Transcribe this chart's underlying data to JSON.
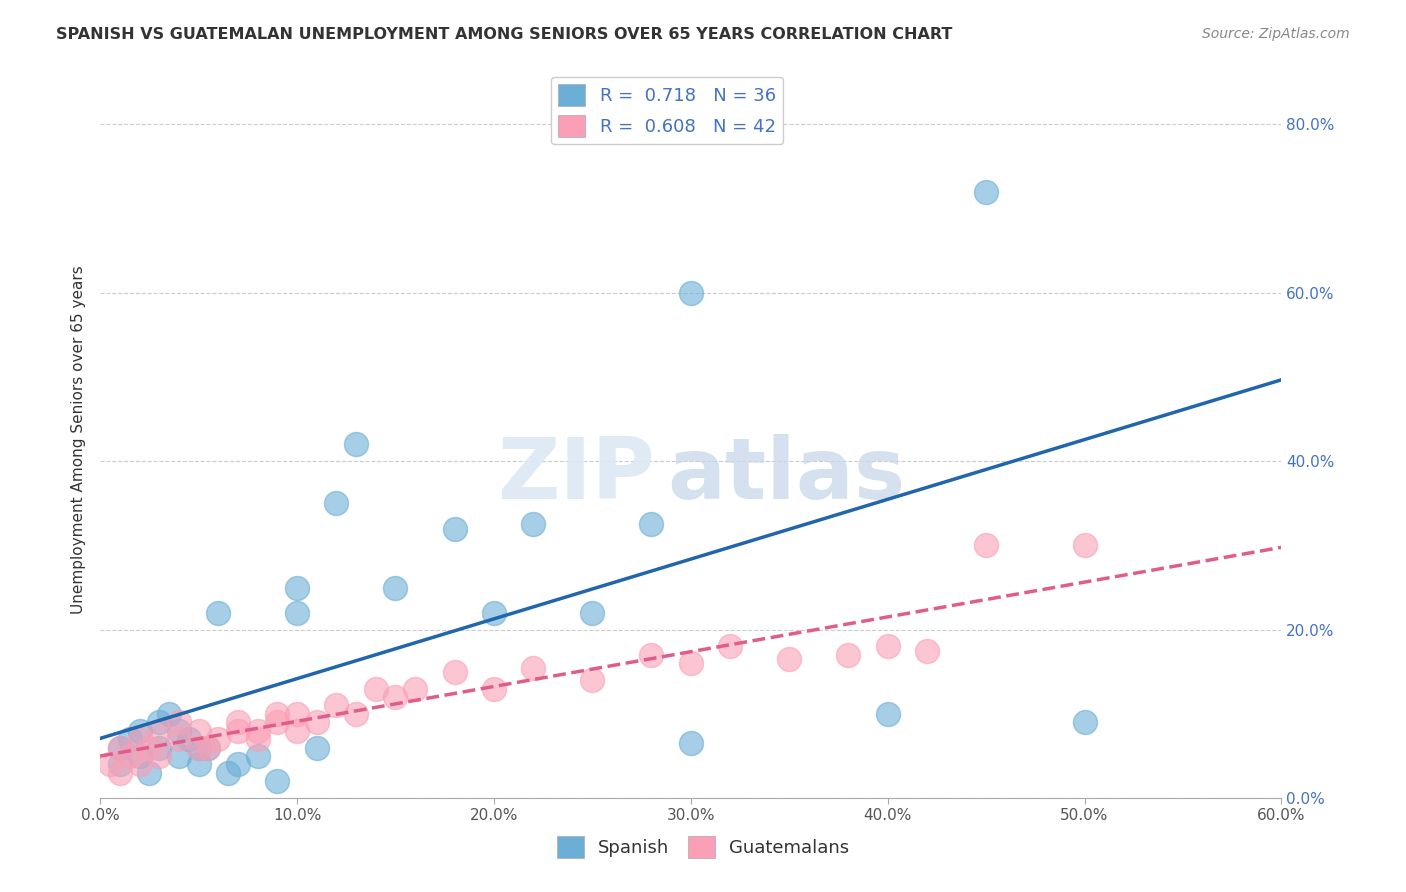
{
  "title": "SPANISH VS GUATEMALAN UNEMPLOYMENT AMONG SENIORS OVER 65 YEARS CORRELATION CHART",
  "source": "Source: ZipAtlas.com",
  "ylabel": "Unemployment Among Seniors over 65 years",
  "xlim": [
    0.0,
    0.6
  ],
  "ylim": [
    0.0,
    0.85
  ],
  "xticks": [
    0.0,
    0.1,
    0.2,
    0.3,
    0.4,
    0.5,
    0.6
  ],
  "yticks_right": [
    0.0,
    0.2,
    0.4,
    0.6,
    0.8
  ],
  "spanish_color": "#6baed6",
  "guatemalan_color": "#fa9fb5",
  "spanish_line_color": "#2166ac",
  "guatemalan_line_color": "#e05c8a",
  "spanish_R": 0.718,
  "spanish_N": 36,
  "guatemalan_R": 0.608,
  "guatemalan_N": 42,
  "watermark": "ZIPatlas",
  "spanish_points_x": [
    0.01,
    0.01,
    0.015,
    0.02,
    0.02,
    0.025,
    0.03,
    0.03,
    0.035,
    0.04,
    0.04,
    0.045,
    0.05,
    0.05,
    0.055,
    0.06,
    0.065,
    0.07,
    0.08,
    0.09,
    0.1,
    0.1,
    0.11,
    0.12,
    0.13,
    0.15,
    0.18,
    0.2,
    0.22,
    0.25,
    0.28,
    0.3,
    0.3,
    0.4,
    0.45,
    0.5
  ],
  "spanish_points_y": [
    0.04,
    0.06,
    0.07,
    0.05,
    0.08,
    0.03,
    0.06,
    0.09,
    0.1,
    0.05,
    0.08,
    0.07,
    0.04,
    0.06,
    0.06,
    0.22,
    0.03,
    0.04,
    0.05,
    0.02,
    0.22,
    0.25,
    0.06,
    0.35,
    0.42,
    0.25,
    0.32,
    0.22,
    0.325,
    0.22,
    0.325,
    0.6,
    0.065,
    0.1,
    0.72,
    0.09
  ],
  "guatemalan_points_x": [
    0.005,
    0.01,
    0.01,
    0.015,
    0.02,
    0.02,
    0.025,
    0.03,
    0.03,
    0.04,
    0.04,
    0.05,
    0.05,
    0.055,
    0.06,
    0.07,
    0.07,
    0.08,
    0.08,
    0.09,
    0.09,
    0.1,
    0.1,
    0.11,
    0.12,
    0.13,
    0.14,
    0.15,
    0.16,
    0.18,
    0.2,
    0.22,
    0.25,
    0.28,
    0.3,
    0.32,
    0.35,
    0.38,
    0.4,
    0.42,
    0.45,
    0.5
  ],
  "guatemalan_points_y": [
    0.04,
    0.03,
    0.06,
    0.05,
    0.04,
    0.07,
    0.06,
    0.05,
    0.08,
    0.07,
    0.09,
    0.06,
    0.08,
    0.06,
    0.07,
    0.08,
    0.09,
    0.07,
    0.08,
    0.1,
    0.09,
    0.08,
    0.1,
    0.09,
    0.11,
    0.1,
    0.13,
    0.12,
    0.13,
    0.15,
    0.13,
    0.155,
    0.14,
    0.17,
    0.16,
    0.18,
    0.165,
    0.17,
    0.18,
    0.175,
    0.3,
    0.3
  ],
  "background_color": "#ffffff",
  "grid_color": "#cccccc"
}
